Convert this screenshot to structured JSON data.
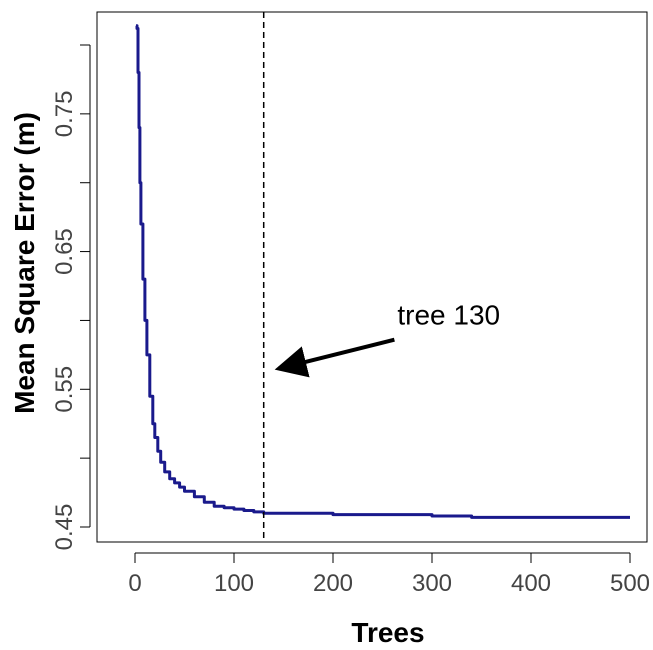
{
  "chart_data": {
    "type": "line",
    "xlabel": "Trees",
    "ylabel": "Mean Square Error (m)",
    "xlim": [
      0,
      500
    ],
    "ylim": [
      0.45,
      0.8
    ],
    "x_ticks": [
      0,
      100,
      200,
      300,
      400,
      500
    ],
    "x_tick_labels": [
      "0",
      "100",
      "200",
      "300",
      "400",
      "500"
    ],
    "y_ticks": [
      0.45,
      0.5,
      0.55,
      0.6,
      0.65,
      0.7,
      0.75,
      0.8
    ],
    "y_tick_labels": [
      "0.45",
      "",
      "0.55",
      "",
      "0.65",
      "",
      "0.75",
      ""
    ],
    "grid": false,
    "series": [
      {
        "color": "#1a1a8c",
        "x": [
          1,
          2,
          3,
          4,
          5,
          6,
          8,
          10,
          12,
          15,
          18,
          20,
          23,
          26,
          30,
          35,
          40,
          45,
          50,
          60,
          70,
          80,
          90,
          100,
          110,
          120,
          130,
          150,
          200,
          250,
          300,
          320,
          340,
          400,
          450,
          500
        ],
        "y": [
          0.814,
          0.812,
          0.78,
          0.74,
          0.7,
          0.67,
          0.63,
          0.6,
          0.575,
          0.545,
          0.525,
          0.515,
          0.505,
          0.497,
          0.49,
          0.485,
          0.482,
          0.479,
          0.476,
          0.472,
          0.468,
          0.465,
          0.464,
          0.463,
          0.462,
          0.461,
          0.46,
          0.46,
          0.459,
          0.459,
          0.458,
          0.458,
          0.457,
          0.457,
          0.457,
          0.457
        ]
      }
    ],
    "vline": {
      "x": 130,
      "style": "dashed",
      "color": "#000000"
    },
    "annotation": {
      "text": "tree 130",
      "label_at": [
        265,
        0.597
      ],
      "arrow_from": [
        262,
        0.586
      ],
      "arrow_to": [
        145,
        0.565
      ]
    }
  }
}
